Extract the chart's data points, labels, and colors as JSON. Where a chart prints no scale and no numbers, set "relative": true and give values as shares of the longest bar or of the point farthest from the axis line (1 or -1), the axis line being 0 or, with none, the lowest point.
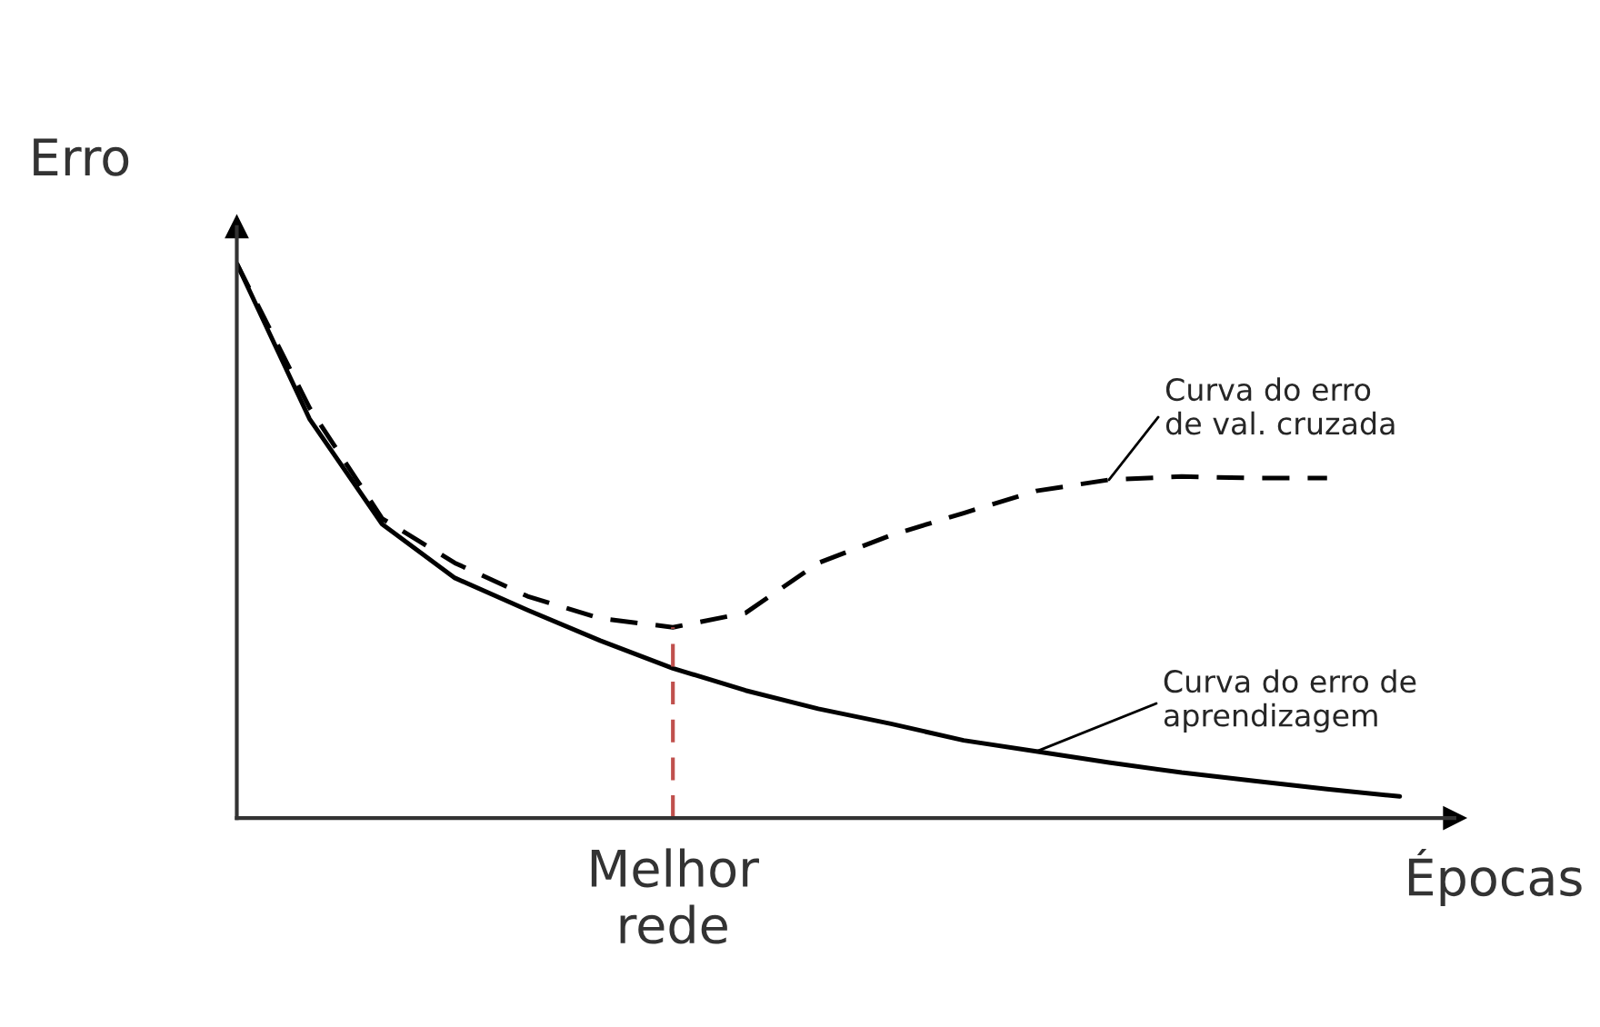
{
  "chart_data": {
    "type": "line",
    "relative": true,
    "xlabel": "Épocas",
    "ylabel": "Erro",
    "categories": [
      null,
      null,
      null,
      null,
      null,
      null,
      null,
      null,
      null,
      null,
      null,
      null,
      null,
      null,
      null,
      null,
      null
    ],
    "annotations": [
      "Melhor\nrede"
    ],
    "series": [
      {
        "name": "Curva do erro de\naprendizagem",
        "color": "#000000",
        "line_style": "solid",
        "values": [
          1.0,
          0.72,
          0.53,
          0.433,
          0.375,
          0.32,
          0.27,
          0.23,
          0.197,
          0.17,
          0.14,
          0.12,
          0.1,
          0.082,
          0.067,
          0.052,
          0.039
        ]
      },
      {
        "name": "Curva do erro\nde val. cruzada",
        "color": "#000000",
        "line_style": "dashed",
        "values": [
          1.0,
          0.74,
          0.54,
          0.46,
          0.4,
          0.36,
          0.344,
          0.37,
          0.46,
          0.51,
          0.55,
          0.59,
          0.61,
          0.616,
          0.613,
          0.613,
          null
        ]
      }
    ],
    "grid": false,
    "legend": false,
    "marker": "none"
  }
}
